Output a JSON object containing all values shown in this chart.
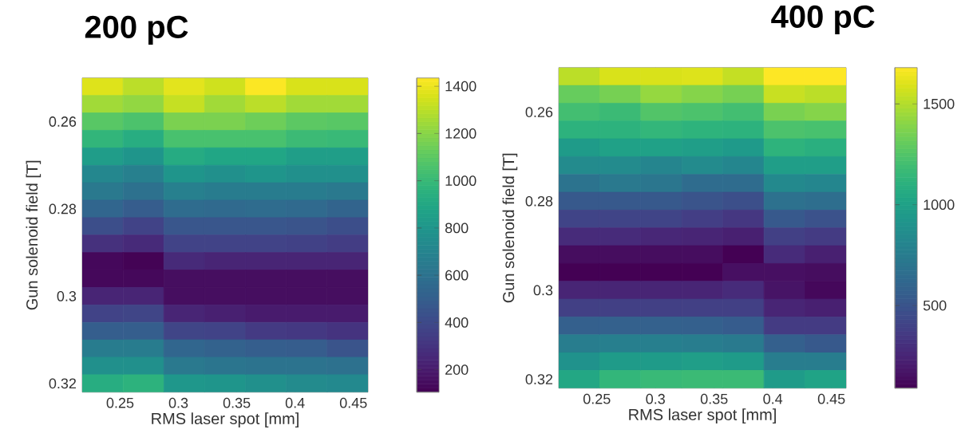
{
  "chart_data": [
    {
      "type": "heatmap",
      "title": "200 pC",
      "xlabel": "RMS laser spot [mm]",
      "ylabel": "Gun solenoid field [T]",
      "x": [
        0.235,
        0.27,
        0.305,
        0.34,
        0.375,
        0.41,
        0.445
      ],
      "y": [
        0.252,
        0.256,
        0.26,
        0.264,
        0.268,
        0.272,
        0.276,
        0.28,
        0.284,
        0.288,
        0.292,
        0.296,
        0.3,
        0.304,
        0.308,
        0.312,
        0.316,
        0.32
      ],
      "xlim": [
        0.2175,
        0.4625
      ],
      "ylim": [
        0.322,
        0.25
      ],
      "xticks": [
        0.25,
        0.3,
        0.35,
        0.4,
        0.45
      ],
      "yticks": [
        0.26,
        0.28,
        0.3,
        0.32
      ],
      "clim": [
        105,
        1435
      ],
      "cticks": [
        200,
        400,
        600,
        800,
        1000,
        1200,
        1400
      ],
      "cells": [
        [
          1370,
          1300,
          1380,
          1340,
          1430,
          1360,
          1360
        ],
        [
          1250,
          1220,
          1320,
          1250,
          1300,
          1250,
          1250
        ],
        [
          1090,
          1060,
          1170,
          1170,
          1140,
          1100,
          1090
        ],
        [
          980,
          930,
          1050,
          1050,
          1050,
          1010,
          1000
        ],
        [
          840,
          800,
          920,
          890,
          890,
          850,
          850
        ],
        [
          720,
          680,
          800,
          770,
          800,
          770,
          770
        ],
        [
          640,
          600,
          680,
          660,
          660,
          660,
          640
        ],
        [
          540,
          490,
          570,
          560,
          570,
          560,
          530
        ],
        [
          420,
          370,
          460,
          460,
          460,
          450,
          420
        ],
        [
          290,
          260,
          370,
          370,
          370,
          360,
          340
        ],
        [
          130,
          110,
          260,
          240,
          240,
          240,
          240
        ],
        [
          130,
          130,
          150,
          150,
          150,
          150,
          150
        ],
        [
          240,
          240,
          150,
          150,
          150,
          150,
          150
        ],
        [
          370,
          380,
          240,
          220,
          200,
          200,
          200
        ],
        [
          500,
          500,
          380,
          370,
          330,
          320,
          300
        ],
        [
          660,
          660,
          540,
          520,
          500,
          490,
          450
        ],
        [
          770,
          770,
          640,
          620,
          610,
          610,
          600
        ],
        [
          930,
          960,
          810,
          800,
          770,
          740,
          730
        ]
      ]
    },
    {
      "type": "heatmap",
      "title": "400 pC",
      "xlabel": "RMS laser spot [mm]",
      "ylabel": "Gun solenoid field [T]",
      "x": [
        0.235,
        0.27,
        0.305,
        0.34,
        0.375,
        0.41,
        0.445
      ],
      "y": [
        0.252,
        0.256,
        0.26,
        0.264,
        0.268,
        0.272,
        0.276,
        0.28,
        0.284,
        0.288,
        0.292,
        0.296,
        0.3,
        0.304,
        0.308,
        0.312,
        0.316,
        0.32
      ],
      "xlim": [
        0.2175,
        0.4625
      ],
      "ylim": [
        0.322,
        0.25
      ],
      "xticks": [
        0.25,
        0.3,
        0.35,
        0.4,
        0.45
      ],
      "yticks": [
        0.26,
        0.28,
        0.3,
        0.32
      ],
      "clim": [
        90,
        1680
      ],
      "cticks": [
        500,
        1000,
        1500
      ],
      "cells": [
        [
          1520,
          1590,
          1590,
          1600,
          1540,
          1680,
          1680
        ],
        [
          1310,
          1350,
          1430,
          1390,
          1350,
          1550,
          1520
        ],
        [
          1200,
          1170,
          1250,
          1230,
          1200,
          1360,
          1390
        ],
        [
          1110,
          1110,
          1140,
          1120,
          1110,
          1230,
          1220
        ],
        [
          960,
          1000,
          1000,
          980,
          950,
          1120,
          1090
        ],
        [
          850,
          850,
          810,
          850,
          820,
          980,
          980
        ],
        [
          690,
          730,
          710,
          650,
          650,
          840,
          820
        ],
        [
          530,
          530,
          530,
          500,
          470,
          680,
          660
        ],
        [
          410,
          410,
          410,
          380,
          340,
          530,
          490
        ],
        [
          280,
          280,
          260,
          250,
          230,
          390,
          360
        ],
        [
          140,
          140,
          140,
          140,
          90,
          280,
          230
        ],
        [
          90,
          90,
          90,
          90,
          150,
          150,
          140
        ],
        [
          250,
          250,
          250,
          250,
          280,
          170,
          120
        ],
        [
          390,
          390,
          390,
          390,
          390,
          250,
          230
        ],
        [
          570,
          580,
          580,
          570,
          550,
          360,
          360
        ],
        [
          760,
          770,
          770,
          760,
          740,
          570,
          530
        ],
        [
          900,
          960,
          960,
          980,
          960,
          760,
          760
        ],
        [
          1040,
          1140,
          1160,
          1170,
          1170,
          960,
          1010
        ]
      ]
    }
  ]
}
